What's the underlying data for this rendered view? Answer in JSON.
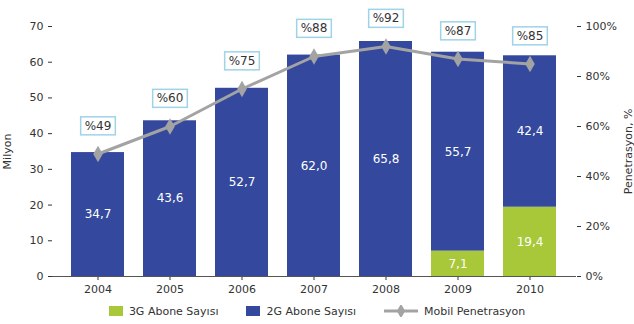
{
  "chart_data": {
    "type": "bar",
    "categories": [
      "2004",
      "2005",
      "2006",
      "2007",
      "2008",
      "2009",
      "2010"
    ],
    "ylabel": "Milyon",
    "y2label": "Penetrasyon, %",
    "ylim": [
      0,
      70
    ],
    "yticks": [
      0,
      10,
      20,
      30,
      40,
      50,
      60,
      70
    ],
    "y2lim": [
      0,
      100
    ],
    "y2ticks": [
      {
        "value": 0,
        "label": "0%"
      },
      {
        "value": 20,
        "label": "20%"
      },
      {
        "value": 40,
        "label": "40%"
      },
      {
        "value": 60,
        "label": "60%"
      },
      {
        "value": 80,
        "label": "80%"
      },
      {
        "value": 100,
        "label": "100%"
      }
    ],
    "stacked": true,
    "data_labels": true,
    "grid": false,
    "legend": "bottom",
    "series": [
      {
        "name": "3G Abone Sayısı",
        "type": "bar",
        "color": "#a8c839",
        "values": [
          null,
          null,
          null,
          null,
          null,
          7.1,
          19.4
        ],
        "value_labels": [
          null,
          null,
          null,
          null,
          null,
          "7,1",
          "19,4"
        ]
      },
      {
        "name": "2G Abone Sayısı",
        "type": "bar",
        "color": "#34499d",
        "values": [
          34.7,
          43.6,
          52.7,
          62.0,
          65.8,
          55.7,
          42.4
        ],
        "value_labels": [
          "34,7",
          "43,6",
          "52,7",
          "62,0",
          "65,8",
          "55,7",
          "42,4"
        ]
      },
      {
        "name": "Mobil Penetrasyon",
        "type": "line",
        "axis": "y2",
        "color": "#a3a3a3",
        "marker": "diamond",
        "values": [
          49,
          60,
          75,
          88,
          92,
          87,
          85
        ],
        "value_labels": [
          "%49",
          "%60",
          "%75",
          "%88",
          "%92",
          "%87",
          "%85"
        ]
      }
    ]
  }
}
